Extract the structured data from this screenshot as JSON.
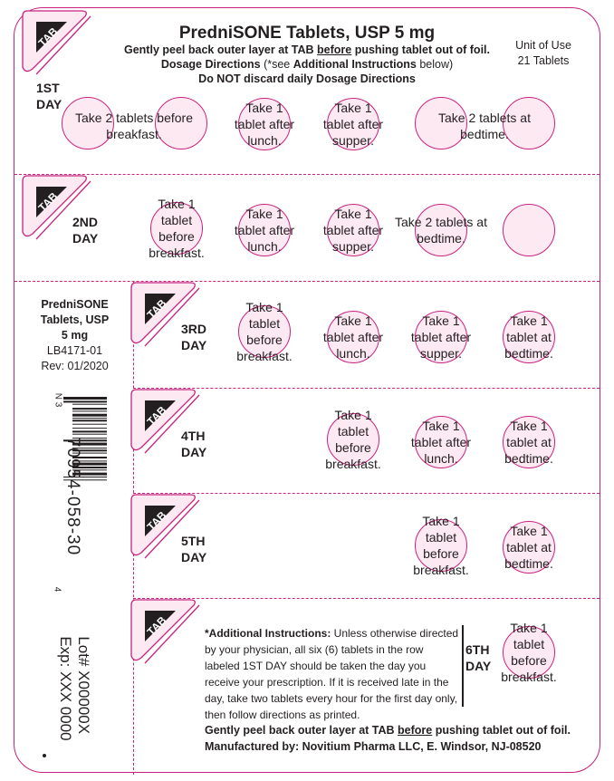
{
  "header": {
    "title": "PredniSONE Tablets, USP 5 mg",
    "peel_pre": "Gently peel back outer layer at TAB ",
    "peel_underlined": "before",
    "peel_post": " pushing tablet out of foil.",
    "dosage_a": "Dosage Directions",
    "dosage_b": " (*see ",
    "dosage_c": "Additional Instructions",
    "dosage_d": " below)",
    "discard": "Do NOT discard daily Dosage Directions",
    "unit_of_use": "Unit of Use",
    "tablet_count": "21 Tablets"
  },
  "tab_label": "TAB",
  "days": [
    {
      "label1": "1ST",
      "label2": "DAY",
      "doses": [
        "Take 2 tablets before",
        "breakfast.",
        "Take 1\ntablet after\nlunch.",
        "Take 1\ntablet after\nsupper.",
        "Take 2 tablets at",
        "bedtime."
      ]
    },
    {
      "label1": "2ND",
      "label2": "DAY",
      "doses": [
        "Take 1\ntablet\nbefore\nbreakfast.",
        "Take 1\ntablet after\nlunch.",
        "Take 1\ntablet after\nsupper.",
        "Take 2 tablets at\nbedtime."
      ]
    },
    {
      "label1": "3RD",
      "label2": "DAY",
      "doses": [
        "Take 1\ntablet\nbefore\nbreakfast.",
        "Take 1\ntablet after\nlunch.",
        "Take 1\ntablet after\nsupper.",
        "Take 1\ntablet at\nbedtime."
      ]
    },
    {
      "label1": "4TH",
      "label2": "DAY",
      "doses": [
        "Take 1\ntablet\nbefore\nbreakfast.",
        "Take 1\ntablet after\nlunch.",
        "Take 1\ntablet at\nbedtime."
      ]
    },
    {
      "label1": "5TH",
      "label2": "DAY",
      "doses": [
        "Take 1\ntablet\nbefore\nbreakfast.",
        "Take 1\ntablet at\nbedtime."
      ]
    },
    {
      "label1": "6TH",
      "label2": "DAY",
      "doses": [
        "Take 1\ntablet\nbefore\nbreakfast."
      ]
    }
  ],
  "side": {
    "product1": "PredniSONE",
    "product2": "Tablets, USP",
    "product3": "5 mg",
    "code": "LB4171-01",
    "rev": "Rev: 01/2020",
    "ndc": "70954-058-30",
    "ndc_prefix": "N 3",
    "ndc_check": "4",
    "lot": "Lot# X00000X",
    "exp": "Exp: XXX 0000"
  },
  "footer": {
    "additional_head": "*Additional Instructions:",
    "additional_body": " Unless otherwise directed by your physician, all six (6) tablets in the row labeled 1ST DAY should be taken the day you receive your prescription.   If it is received late in the day, take two tablets every hour for the first day only, then follow directions as printed.",
    "peel_pre": "Gently peel back outer layer at TAB ",
    "peel_underlined": "before",
    "peel_post": " pushing tablet out of foil.",
    "manufacturer": "Manufactured by: Novitium Pharma LLC, E. Windsor, NJ-08520"
  },
  "colors": {
    "border": "#c8237f",
    "blister_fill": "#fde9f2",
    "tab_fill": "#fde9f2",
    "text": "#231f20"
  }
}
